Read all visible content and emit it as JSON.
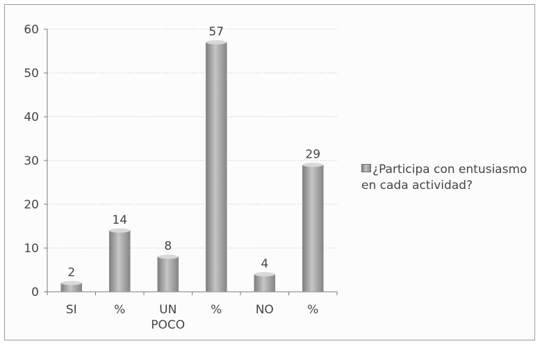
{
  "chart_data": {
    "type": "bar",
    "categories": [
      "SI",
      "%",
      "UN POCO",
      "%",
      "NO",
      "%"
    ],
    "series": [
      {
        "name": "¿Participa con entusiasmo en cada actividad?",
        "values": [
          2,
          14,
          8,
          57,
          4,
          29
        ]
      }
    ],
    "ylim": [
      0,
      60
    ],
    "yticks": [
      0,
      10,
      20,
      30,
      40,
      50,
      60
    ],
    "grid": true,
    "legend_position": "right",
    "bar_color": "#a9a9a9"
  }
}
